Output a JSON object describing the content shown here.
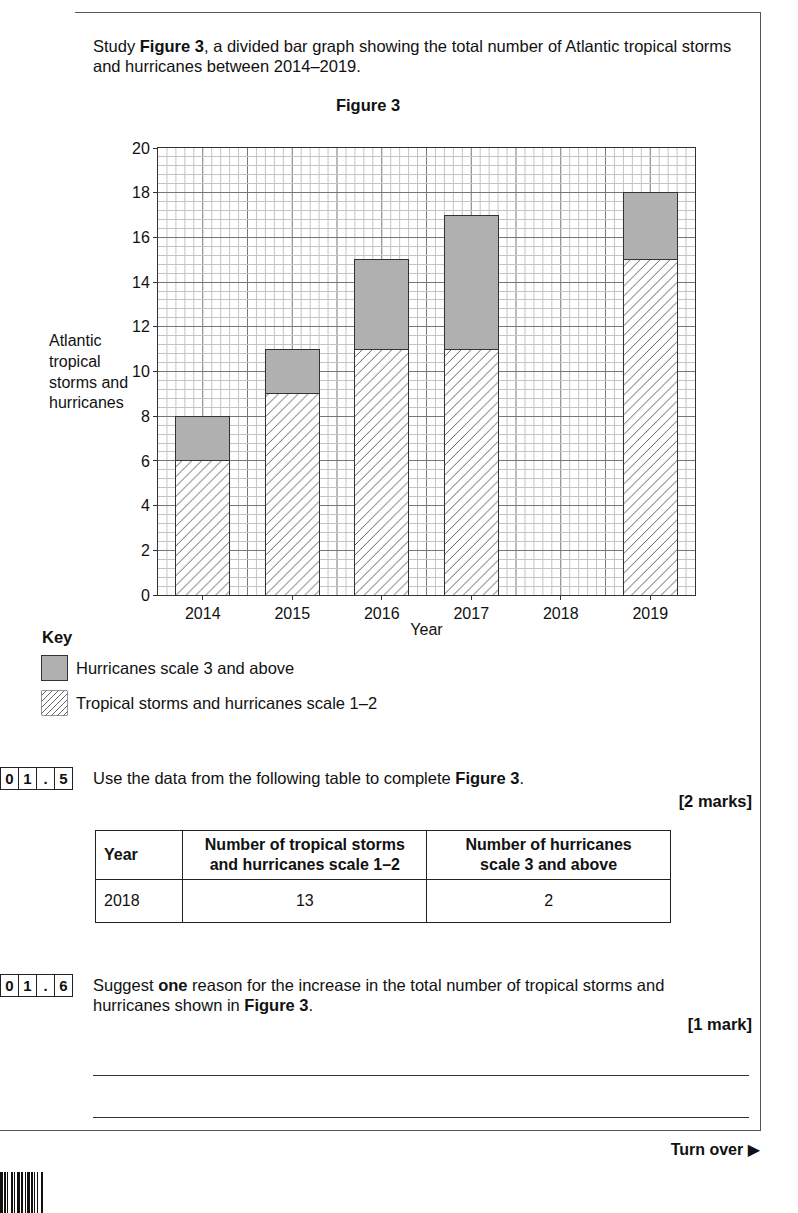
{
  "page": {
    "intro": [
      {
        "text": "Study "
      },
      {
        "text": "Figure 3",
        "bold": true
      },
      {
        "text": ", a divided bar graph showing the total number of Atlantic tropical storms and hurricanes between 2014–2019."
      }
    ],
    "key_heading": "Key",
    "questions": [
      {
        "number": "01.5",
        "text": [
          {
            "text": "Use the data from the following table to complete "
          },
          {
            "text": "Figure 3",
            "bold": true
          },
          {
            "text": "."
          }
        ],
        "marks": "[2 marks]"
      },
      {
        "number": "01.6",
        "text": [
          {
            "text": "Suggest "
          },
          {
            "text": "one",
            "bold": true
          },
          {
            "text": " reason for the increase in the total number of tropical storms and hurricanes shown in "
          },
          {
            "text": "Figure 3",
            "bold": true
          },
          {
            "text": "."
          }
        ],
        "marks": "[1 mark]"
      }
    ],
    "table": {
      "header": [
        "Year",
        "Number of tropical storms\nand hurricanes scale 1–2",
        "Number of hurricanes\nscale 3 and above"
      ],
      "rows": [
        [
          "2018",
          13,
          2
        ]
      ]
    },
    "footer": "Turn over ▶"
  },
  "chart_data": {
    "type": "bar",
    "stacked": true,
    "title": "Figure 3",
    "x_label": "Year",
    "y_label": "Atlantic\ntropical\nstorms and\nhurricanes",
    "categories": [
      "2014",
      "2015",
      "2016",
      "2017",
      "2018",
      "2019"
    ],
    "series": [
      {
        "name": "Tropical storms and hurricanes scale 1–2",
        "color": "#ffffff",
        "marker": "hatch",
        "values": [
          6,
          9,
          11,
          11,
          null,
          15
        ]
      },
      {
        "name": "Hurricanes scale 3 and above",
        "color": "#b0b0b0",
        "values": [
          2,
          2,
          4,
          6,
          null,
          3
        ]
      }
    ],
    "ylim": [
      0,
      20
    ],
    "yticks": [
      0,
      2,
      4,
      6,
      8,
      10,
      12,
      14,
      16,
      18,
      20
    ],
    "grid": true
  }
}
